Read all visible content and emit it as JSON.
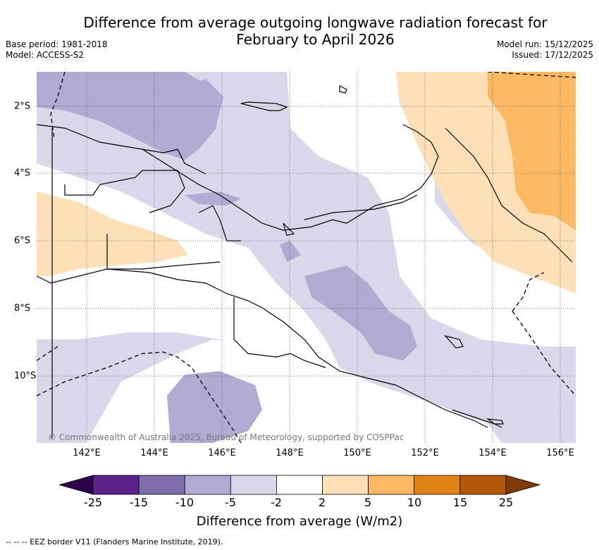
{
  "header": {
    "title_line1": "Difference from average outgoing longwave radiation forecast for",
    "title_line2": "February to April 2026",
    "base_period": "Base period: 1981-2018",
    "model": "Model: ACCESS-S2",
    "model_run": "Model run: 15/12/2025",
    "issued": "Issued: 17/12/2025"
  },
  "map": {
    "copyright": "© Commonwealth of Australia 2025, Bureau of Meteorology, supported by COSPPac",
    "x_ticks": [
      "142°E",
      "144°E",
      "146°E",
      "148°E",
      "150°E",
      "152°E",
      "154°E",
      "156°E"
    ],
    "y_ticks": [
      "2°S",
      "4°S",
      "6°S",
      "8°S",
      "10°S"
    ]
  },
  "legend": {
    "title": "Difference from average (W/m2)",
    "labels": [
      "-25",
      "-15",
      "-10",
      "-5",
      "-2",
      "2",
      "5",
      "10",
      "15",
      "25"
    ],
    "colors": [
      "#5b2388",
      "#7f6eab",
      "#b1aad2",
      "#d8d8ea",
      "#ffffff",
      "#fde0b8",
      "#fdb863",
      "#e08214",
      "#b35806"
    ],
    "low_extend_color": "#2d004b",
    "high_extend_color": "#7f3b08"
  },
  "footnote": "-- -- -- EEZ border V11 (Flanders Marine Institute, 2019).",
  "colors": {
    "light_purple": "#d8d8ea",
    "mid_purple": "#b1aad2",
    "light_orange": "#fde0b8",
    "mid_orange": "#fdb863"
  }
}
